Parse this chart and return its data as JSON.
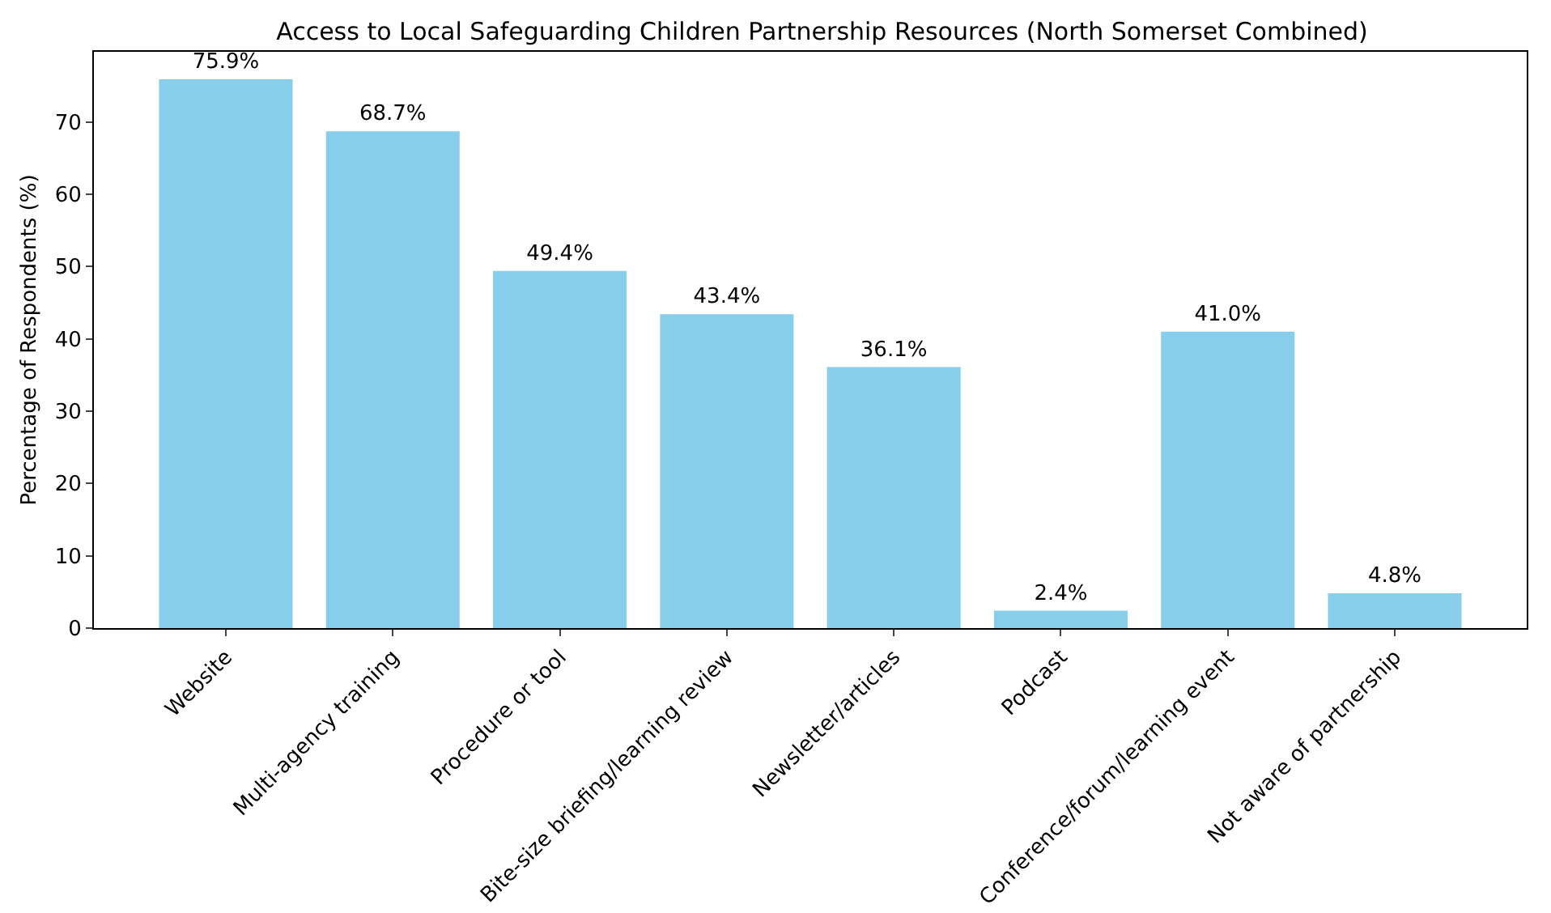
{
  "chart_data": {
    "type": "bar",
    "title": "Access to Local Safeguarding Children Partnership Resources (North Somerset Combined)",
    "ylabel": "Percentage of Respondents (%)",
    "categories": [
      "Website",
      "Multi-agency training",
      "Procedure or tool",
      "Bite-size briefing/learning review",
      "Newsletter/articles",
      "Podcast",
      "Conference/forum/learning event",
      "Not aware of partnership"
    ],
    "values": [
      75.9,
      68.7,
      49.4,
      43.4,
      36.1,
      2.4,
      41.0,
      4.8
    ],
    "value_labels": [
      "75.9%",
      "68.7%",
      "49.4%",
      "43.4%",
      "36.1%",
      "2.4%",
      "41.0%",
      "4.8%"
    ],
    "color": "#87ceeb",
    "ylim": [
      0,
      79.7
    ],
    "yticks": [
      0,
      10,
      20,
      30,
      40,
      50,
      60,
      70
    ],
    "grid": false,
    "legend": false
  }
}
